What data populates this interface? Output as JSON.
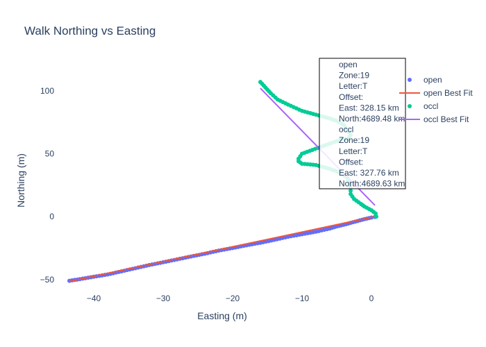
{
  "chart_data": {
    "type": "scatter",
    "title": "Walk Northing vs Easting",
    "xlabel": "Easting (m)",
    "ylabel": "Northing (m)",
    "xlim": [
      -45.5,
      4.5
    ],
    "ylim": [
      -59.5,
      128
    ],
    "xticks": [
      -40,
      -30,
      -20,
      -10,
      0
    ],
    "yticks": [
      -50,
      0,
      50,
      100
    ],
    "grid": false,
    "legend_position": "right",
    "series": [
      {
        "name": "open",
        "mode": "markers",
        "color": "#636efa",
        "points": [
          [
            -43.5,
            -51
          ],
          [
            -42,
            -49.7
          ],
          [
            -40,
            -47.8
          ],
          [
            -38,
            -46
          ],
          [
            -36,
            -43.5
          ],
          [
            -34,
            -41
          ],
          [
            -32,
            -38.5
          ],
          [
            -30,
            -36.3
          ],
          [
            -28,
            -34
          ],
          [
            -26,
            -31.7
          ],
          [
            -24,
            -29.5
          ],
          [
            -22,
            -27
          ],
          [
            -20,
            -25
          ],
          [
            -18,
            -22.8
          ],
          [
            -16,
            -20.8
          ],
          [
            -14,
            -18.5
          ],
          [
            -12,
            -16
          ],
          [
            -10,
            -14
          ],
          [
            -8,
            -12
          ],
          [
            -6,
            -9.5
          ],
          [
            -5,
            -7.8
          ],
          [
            -4,
            -6.5
          ],
          [
            -3,
            -5
          ],
          [
            -2,
            -3.5
          ],
          [
            -1,
            -2
          ],
          [
            0,
            -0.8
          ],
          [
            0.5,
            -0.3
          ]
        ]
      },
      {
        "name": "open Best Fit",
        "mode": "line",
        "color": "#ef553b",
        "points": [
          [
            -43.5,
            -51.5
          ],
          [
            0.5,
            0
          ]
        ]
      },
      {
        "name": "occl",
        "mode": "markers",
        "color": "#00cc96",
        "points": [
          [
            -16,
            107
          ],
          [
            -15.5,
            104
          ],
          [
            -14.5,
            98
          ],
          [
            -13.5,
            93
          ],
          [
            -12,
            89
          ],
          [
            -10,
            84
          ],
          [
            -8,
            81
          ],
          [
            -6,
            78
          ],
          [
            -5,
            76
          ],
          [
            -4,
            73
          ],
          [
            -3.5,
            69
          ],
          [
            -3,
            65
          ],
          [
            -3.3,
            62
          ],
          [
            -4.5,
            61
          ],
          [
            -6.5,
            57
          ],
          [
            -8.5,
            53
          ],
          [
            -10,
            50
          ],
          [
            -10.5,
            46
          ],
          [
            -10.5,
            44
          ],
          [
            -10,
            42
          ],
          [
            -8,
            41
          ],
          [
            -6,
            38
          ],
          [
            -4.5,
            35
          ],
          [
            -3.5,
            31
          ],
          [
            -3.2,
            27
          ],
          [
            -3,
            23
          ],
          [
            -3,
            18
          ],
          [
            -2.5,
            14
          ],
          [
            -1.5,
            10
          ],
          [
            -1,
            8
          ],
          [
            0,
            5
          ],
          [
            0.6,
            2.5
          ],
          [
            0.7,
            0
          ]
        ]
      },
      {
        "name": "occl Best Fit",
        "mode": "line",
        "color": "#ab63fa",
        "points": [
          [
            -16,
            102
          ],
          [
            0.5,
            9
          ]
        ]
      }
    ],
    "annotation": {
      "lines": [
        "open",
        "Zone:19",
        "Letter:T",
        "Offset:",
        "East: 328.15 km",
        "North:4689.48 km",
        "occl",
        "Zone:19",
        "Letter:T",
        "Offset:",
        "East: 327.76 km",
        "North:4689.63 km"
      ]
    }
  }
}
